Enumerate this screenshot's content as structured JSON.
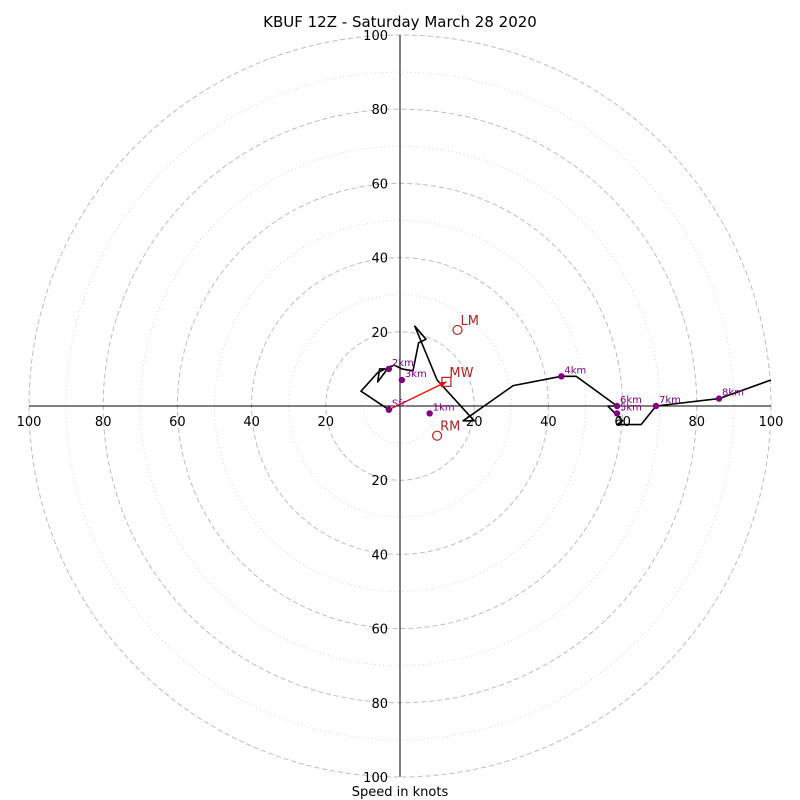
{
  "chart_data": {
    "type": "line",
    "title": "KBUF 12Z - Saturday March 28 2020",
    "xlabel": "Speed in knots",
    "range": [
      -100,
      100
    ],
    "rings_major": [
      20,
      40,
      60,
      80,
      100
    ],
    "rings_minor": [
      10,
      30,
      50,
      70,
      90
    ],
    "axis_ticks": {
      "right": [
        "20",
        "40",
        "60",
        "80",
        "100"
      ],
      "left": [
        "100",
        "80",
        "60",
        "40",
        "20"
      ],
      "up": [
        "20",
        "40",
        "60",
        "80",
        "100"
      ],
      "down": [
        "20",
        "40",
        "60",
        "80",
        "100"
      ]
    },
    "trace": {
      "color": "#000000",
      "u": [
        -3,
        -10.5,
        -6,
        -4,
        -5.5,
        -6,
        -3,
        -1.5,
        0.5,
        3.5,
        5,
        7,
        4,
        10,
        20,
        17,
        30.5,
        43.5,
        47.5,
        58.5,
        56,
        60,
        58.5,
        65,
        69,
        86,
        100
      ],
      "v": [
        -1,
        4,
        9,
        10,
        10,
        6.5,
        10.5,
        11,
        10,
        9.5,
        17,
        18,
        21.5,
        7,
        -4,
        -4,
        5.5,
        8,
        8,
        0,
        0,
        -4,
        -5,
        -5,
        0,
        2,
        7
      ]
    },
    "height_markers": {
      "color": "#800080",
      "points": [
        {
          "label": "Sfc",
          "u": -3,
          "v": -1
        },
        {
          "label": "1km",
          "u": 8,
          "v": -2
        },
        {
          "label": "2km",
          "u": -3,
          "v": 10
        },
        {
          "label": "3km",
          "u": 0.5,
          "v": 7
        },
        {
          "label": "4km",
          "u": 43.5,
          "v": 8
        },
        {
          "label": "5km",
          "u": 58.5,
          "v": -2
        },
        {
          "label": "6km",
          "u": 58.5,
          "v": 0
        },
        {
          "label": "7km",
          "u": 69,
          "v": 0
        },
        {
          "label": "8km",
          "u": 86,
          "v": 2
        }
      ]
    },
    "storm_motion": {
      "color": "#b22222",
      "points": [
        {
          "label": "LM",
          "u": 15.5,
          "v": 20.5,
          "marker": "circle"
        },
        {
          "label": "MW",
          "u": 12.5,
          "v": 6.5,
          "marker": "square"
        },
        {
          "label": "RM",
          "u": 10,
          "v": -8,
          "marker": "circle"
        }
      ],
      "shear_vector": {
        "color": "#ff0000",
        "from_u": -3,
        "from_v": -1,
        "to_u": 12.5,
        "to_v": 6.5
      }
    }
  }
}
